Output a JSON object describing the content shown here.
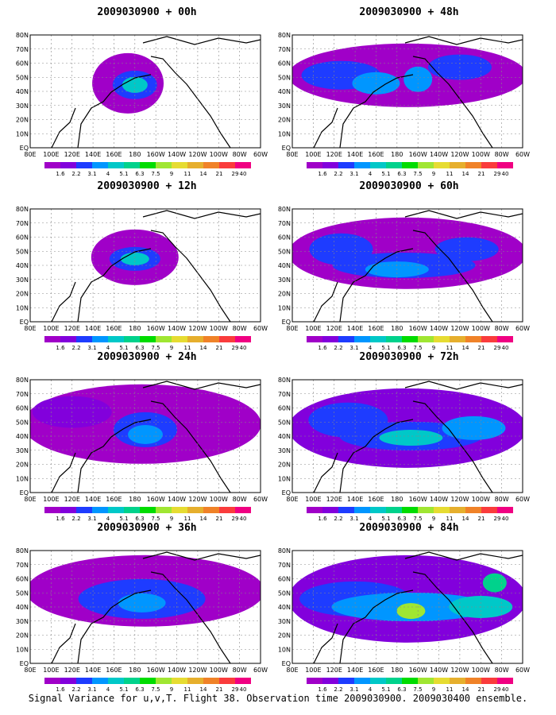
{
  "panels": [
    {
      "title": "2009030900 + 00h"
    },
    {
      "title": "2009030900 + 48h"
    },
    {
      "title": "2009030900 + 12h"
    },
    {
      "title": "2009030900 + 60h"
    },
    {
      "title": "2009030900 + 24h"
    },
    {
      "title": "2009030900 + 72h"
    },
    {
      "title": "2009030900 + 36h"
    },
    {
      "title": "2009030900 + 84h"
    }
  ],
  "lat_labels": [
    "80N",
    "70N",
    "60N",
    "50N",
    "40N",
    "30N",
    "20N",
    "10N",
    "EQ"
  ],
  "lon_labels": [
    "80E",
    "100E",
    "120E",
    "140E",
    "160E",
    "180",
    "160W",
    "140W",
    "120W",
    "100W",
    "80W",
    "60W"
  ],
  "colorbar": {
    "labels": [
      "1.6",
      "2.2",
      "3.1",
      "4",
      "5.1",
      "6.3",
      "7.5",
      "9",
      "11",
      "14",
      "21",
      "29",
      "40"
    ],
    "colors": [
      "#a000c8",
      "#8200dc",
      "#1e3cff",
      "#0096ff",
      "#00c8c8",
      "#00d28c",
      "#00dc00",
      "#a0e632",
      "#e6dc32",
      "#e6af2d",
      "#f08228",
      "#fa3c3c",
      "#f00082"
    ]
  },
  "footer": "Signal Variance for u,v,T. Flight 38. Observation time 2009030900. 2009030400 ensemble."
}
